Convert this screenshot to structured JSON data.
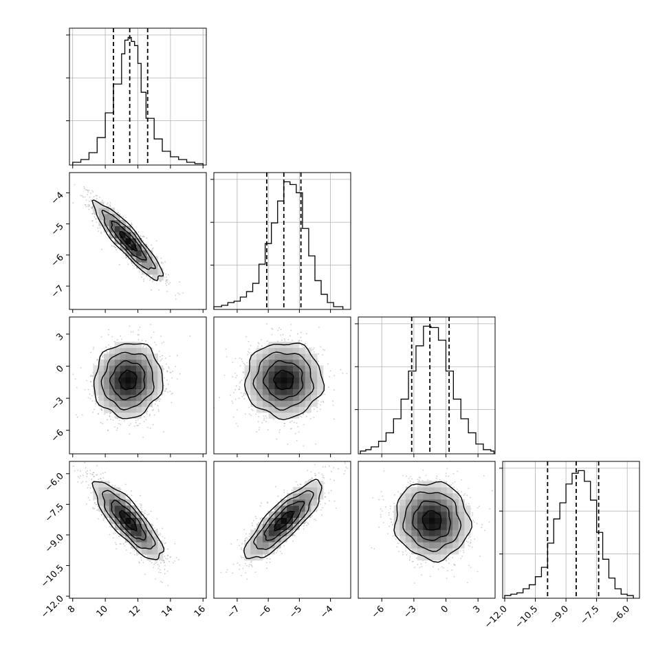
{
  "chart_data": {
    "type": "corner",
    "title": "",
    "parameters": [
      "",
      "",
      "",
      ""
    ],
    "colors": {
      "hist": "#000000",
      "scatter": "#9a9a9a",
      "grid": "#b0b0b0",
      "density_dark": "#000000"
    },
    "grid": true,
    "axes": [
      {
        "range": [
          7.8,
          16.2
        ],
        "ticks": [
          8,
          10,
          12,
          14,
          16
        ],
        "tick_labels": [
          "8",
          "10",
          "12",
          "14",
          "16"
        ]
      },
      {
        "range": [
          -7.75,
          -3.35
        ],
        "ticks": [
          -7,
          -6,
          -5,
          -4
        ],
        "tick_labels": [
          "−7",
          "−6",
          "−5",
          "−4"
        ]
      },
      {
        "range": [
          -8.2,
          4.6
        ],
        "ticks": [
          -6,
          -3,
          0,
          3
        ],
        "tick_labels": [
          "−6",
          "−3",
          "0",
          "3"
        ]
      },
      {
        "range": [
          -12.1,
          -5.4
        ],
        "ticks": [
          -12.0,
          -10.5,
          -9.0,
          -7.5,
          -6.0
        ],
        "tick_labels": [
          "−12.0",
          "−10.5",
          "−9.0",
          "−7.5",
          "−6.0"
        ]
      }
    ],
    "marginals": [
      {
        "bin_edges": [
          8.0,
          8.5,
          9.0,
          9.5,
          10.0,
          10.5,
          11.0,
          11.2,
          11.4,
          11.6,
          11.8,
          12.0,
          12.2,
          12.5,
          13.0,
          13.5,
          14.0,
          14.5,
          15.0,
          15.5,
          16.0
        ],
        "counts": [
          1,
          3,
          8,
          19,
          37,
          58,
          80,
          90,
          92,
          89,
          86,
          73,
          52,
          33,
          18,
          9,
          5,
          3,
          1,
          0
        ],
        "quantiles": [
          10.5,
          11.5,
          12.6
        ]
      },
      {
        "bin_edges": [
          -7.75,
          -7.5,
          -7.3,
          -7.1,
          -6.9,
          -6.7,
          -6.5,
          -6.3,
          -6.1,
          -5.9,
          -5.7,
          -5.5,
          -5.3,
          -5.1,
          -4.9,
          -4.7,
          -4.5,
          -4.3,
          -4.1,
          -3.9,
          -3.6
        ],
        "counts": [
          1,
          2,
          4,
          5,
          8,
          12,
          18,
          32,
          47,
          62,
          78,
          92,
          90,
          84,
          58,
          38,
          20,
          10,
          4,
          1
        ],
        "quantiles": [
          -6.05,
          -5.5,
          -4.95
        ]
      },
      {
        "bin_edges": [
          -8.0,
          -7.5,
          -7.0,
          -6.3,
          -5.6,
          -4.9,
          -4.2,
          -3.5,
          -2.8,
          -2.1,
          -1.4,
          -0.7,
          0.0,
          0.7,
          1.4,
          2.1,
          2.8,
          3.5,
          4.2,
          4.5
        ],
        "counts": [
          1,
          2,
          4,
          8,
          14,
          24,
          38,
          58,
          76,
          90,
          89,
          80,
          58,
          38,
          24,
          14,
          6,
          2,
          1
        ],
        "quantiles": [
          -3.2,
          -1.5,
          0.3
        ]
      },
      {
        "bin_edges": [
          -12.0,
          -11.7,
          -11.4,
          -11.1,
          -10.8,
          -10.5,
          -10.2,
          -9.9,
          -9.6,
          -9.3,
          -9.0,
          -8.7,
          -8.4,
          -8.1,
          -7.8,
          -7.5,
          -7.2,
          -6.9,
          -6.6,
          -6.3,
          -6.0,
          -5.7
        ],
        "counts": [
          1,
          2,
          3,
          6,
          9,
          15,
          22,
          40,
          58,
          70,
          84,
          92,
          94,
          86,
          72,
          48,
          28,
          14,
          6,
          2,
          1
        ],
        "quantiles": [
          -9.9,
          -8.5,
          -7.4
        ]
      }
    ],
    "joint": [
      {
        "x": 0,
        "y": 1,
        "mean": [
          11.4,
          -5.55
        ],
        "sd": [
          1.05,
          0.62
        ],
        "rho": -0.9
      },
      {
        "x": 0,
        "y": 2,
        "mean": [
          11.4,
          -1.3
        ],
        "sd": [
          1.05,
          1.75
        ],
        "rho": 0.05
      },
      {
        "x": 1,
        "y": 2,
        "mean": [
          -5.5,
          -1.3
        ],
        "sd": [
          0.62,
          1.75
        ],
        "rho": 0.0
      },
      {
        "x": 0,
        "y": 3,
        "mean": [
          11.4,
          -8.3
        ],
        "sd": [
          1.05,
          0.95
        ],
        "rho": -0.82
      },
      {
        "x": 1,
        "y": 3,
        "mean": [
          -5.5,
          -8.3
        ],
        "sd": [
          0.62,
          0.95
        ],
        "rho": 0.83
      },
      {
        "x": 2,
        "y": 3,
        "mean": [
          -1.3,
          -8.3
        ],
        "sd": [
          1.75,
          0.95
        ],
        "rho": -0.05
      }
    ],
    "contour_levels": [
      0.5,
      1.0,
      1.5,
      2.0
    ]
  }
}
